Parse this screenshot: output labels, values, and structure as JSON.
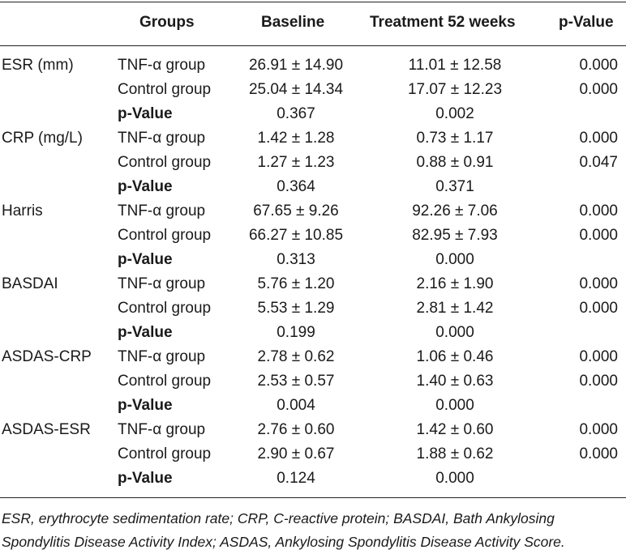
{
  "header": {
    "groups": "Groups",
    "baseline": "Baseline",
    "treatment": "Treatment 52 weeks",
    "pvalue": "p-Value"
  },
  "sections": [
    {
      "label": "ESR (mm)",
      "rows": [
        {
          "group": "TNF-α group",
          "baseline": "26.91 ± 14.90",
          "treatment": "11.01 ± 12.58",
          "p": "0.000"
        },
        {
          "group": "Control group",
          "baseline": "25.04 ± 14.34",
          "treatment": "17.07 ± 12.23",
          "p": "0.000"
        },
        {
          "group": "p-Value",
          "baseline": "0.367",
          "treatment": "0.002",
          "p": ""
        }
      ]
    },
    {
      "label": "CRP (mg/L)",
      "rows": [
        {
          "group": "TNF-α group",
          "baseline": "1.42 ± 1.28",
          "treatment": "0.73 ± 1.17",
          "p": "0.000"
        },
        {
          "group": "Control group",
          "baseline": "1.27 ± 1.23",
          "treatment": "0.88 ± 0.91",
          "p": "0.047"
        },
        {
          "group": "p-Value",
          "baseline": "0.364",
          "treatment": "0.371",
          "p": ""
        }
      ]
    },
    {
      "label": "Harris",
      "rows": [
        {
          "group": "TNF-α group",
          "baseline": "67.65 ± 9.26",
          "treatment": "92.26 ± 7.06",
          "p": "0.000"
        },
        {
          "group": "Control group",
          "baseline": "66.27 ± 10.85",
          "treatment": "82.95 ± 7.93",
          "p": "0.000"
        },
        {
          "group": "p-Value",
          "baseline": "0.313",
          "treatment": "0.000",
          "p": ""
        }
      ]
    },
    {
      "label": "BASDAI",
      "rows": [
        {
          "group": "TNF-α group",
          "baseline": "5.76 ± 1.20",
          "treatment": "2.16 ± 1.90",
          "p": "0.000"
        },
        {
          "group": "Control group",
          "baseline": "5.53 ± 1.29",
          "treatment": "2.81 ± 1.42",
          "p": "0.000"
        },
        {
          "group": "p-Value",
          "baseline": "0.199",
          "treatment": "0.000",
          "p": ""
        }
      ]
    },
    {
      "label": "ASDAS-CRP",
      "rows": [
        {
          "group": "TNF-α group",
          "baseline": "2.78 ± 0.62",
          "treatment": "1.06 ± 0.46",
          "p": "0.000"
        },
        {
          "group": "Control group",
          "baseline": "2.53 ± 0.57",
          "treatment": "1.40 ± 0.63",
          "p": "0.000"
        },
        {
          "group": "p-Value",
          "baseline": "0.004",
          "treatment": "0.000",
          "p": ""
        }
      ]
    },
    {
      "label": "ASDAS-ESR",
      "rows": [
        {
          "group": "TNF-α group",
          "baseline": "2.76 ± 0.60",
          "treatment": "1.42 ± 0.60",
          "p": "0.000"
        },
        {
          "group": "Control group",
          "baseline": "2.90 ± 0.67",
          "treatment": "1.88 ± 0.62",
          "p": "0.000"
        },
        {
          "group": "p-Value",
          "baseline": "0.124",
          "treatment": "0.000",
          "p": ""
        }
      ]
    }
  ],
  "footnote": "ESR, erythrocyte sedimentation rate; CRP, C-reactive protein; BASDAI, Bath Ankylosing Spondylitis Disease Activity Index; ASDAS, Ankylosing Spondylitis Disease Activity Score."
}
